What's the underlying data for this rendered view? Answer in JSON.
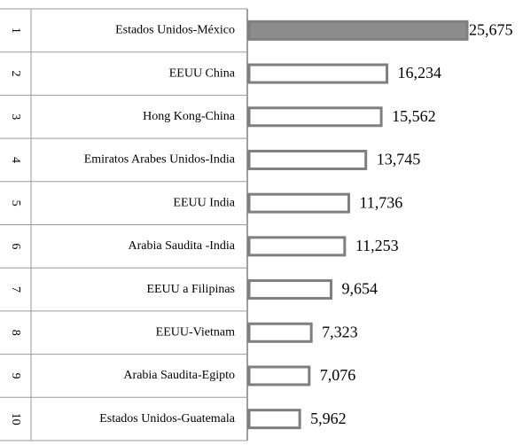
{
  "chart_data": {
    "type": "bar",
    "orientation": "horizontal",
    "ranks": [
      1,
      2,
      3,
      4,
      5,
      6,
      7,
      8,
      9,
      10
    ],
    "categories": [
      "Estados Unidos-México",
      "EEUU China",
      "Hong Kong-China",
      "Emiratos Arabes Unidos-India",
      "EEUU India",
      "Arabia Saudita -India",
      "EEUU a Filipinas",
      "EEUU-Vietnam",
      "Arabia Saudita-Egipto",
      "Estados Unidos-Guatemala"
    ],
    "values": [
      25675,
      16234,
      15562,
      13745,
      11736,
      11253,
      9654,
      7323,
      7076,
      5962
    ],
    "value_labels": [
      "25,675",
      "16,234",
      "15,562",
      "13,745",
      "11,736",
      "11,253",
      "9,654",
      "7,323",
      "7,076",
      "5,962"
    ],
    "colors": [
      "#8c8c8c",
      "#ffffff",
      "#ffffff",
      "#ffffff",
      "#ffffff",
      "#ffffff",
      "#ffffff",
      "#ffffff",
      "#ffffff",
      "#ffffff"
    ],
    "edge_color": "#7f7f7f"
  }
}
